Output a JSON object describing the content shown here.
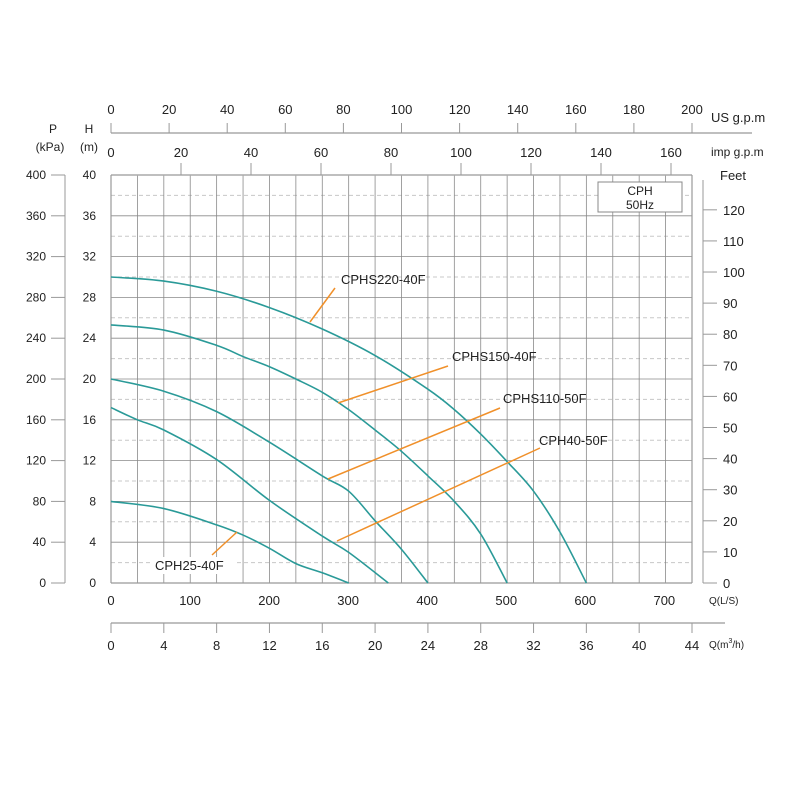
{
  "chart_data": {
    "type": "line",
    "title": "",
    "legend_box": {
      "line1": "CPH",
      "line2": "50Hz"
    },
    "x_axis": {
      "label": "Q(m³/h)",
      "label_main": "Q(m",
      "label_sup": "3",
      "label_end": "/h)",
      "range": [
        0,
        44
      ],
      "ticks": [
        0,
        4,
        8,
        12,
        16,
        20,
        24,
        28,
        32,
        36,
        40,
        44
      ]
    },
    "x_axis_ls": {
      "label": "Q(L/S)",
      "range": [
        0,
        735
      ],
      "ticks": [
        0,
        100,
        200,
        300,
        400,
        500,
        600,
        700
      ]
    },
    "x_axis_us_gpm": {
      "label": "US g.p.m",
      "range": [
        0,
        200
      ],
      "ticks": [
        0,
        20,
        40,
        60,
        80,
        100,
        120,
        140,
        160,
        180,
        200
      ]
    },
    "x_axis_imp_gpm": {
      "label": "imp g.p.m",
      "range": [
        0,
        166
      ],
      "ticks": [
        0,
        20,
        40,
        60,
        80,
        100,
        120,
        140,
        160
      ]
    },
    "y_axis": {
      "label_top": "H",
      "label_unit": "(m)",
      "range": [
        0,
        40
      ],
      "ticks": [
        0,
        4,
        8,
        12,
        16,
        20,
        24,
        28,
        32,
        36,
        40
      ]
    },
    "y_axis_kpa": {
      "label_top": "P",
      "label_unit": "(kPa)",
      "range": [
        0,
        400
      ],
      "ticks": [
        0,
        40,
        80,
        120,
        160,
        200,
        240,
        280,
        320,
        360,
        400
      ]
    },
    "y_axis_feet": {
      "label": "Feet",
      "range": [
        0,
        131.2
      ],
      "ticks": [
        0,
        10,
        20,
        30,
        40,
        50,
        60,
        70,
        80,
        90,
        100,
        110,
        120
      ]
    },
    "grid": true,
    "colors": {
      "curve": "#2a9a98",
      "leader": "#f0902a",
      "grid": "#8a8a8a",
      "grid_dashed": "#c8c8c8"
    },
    "series": [
      {
        "name": "CPHS220-40F",
        "x": [
          0,
          4,
          8,
          12,
          16,
          20,
          24,
          26,
          28,
          30,
          32,
          34,
          36
        ],
        "y": [
          30,
          29.6,
          28.6,
          27,
          24.9,
          22.3,
          19,
          17,
          14.6,
          11.9,
          9,
          5,
          0
        ]
      },
      {
        "name": "CPHS150-40F",
        "x": [
          0,
          4,
          8,
          10,
          12,
          14,
          16,
          18,
          20,
          22,
          24,
          26,
          28,
          30
        ],
        "y": [
          25.3,
          24.8,
          23.3,
          22.2,
          21.2,
          20,
          18.7,
          17,
          15,
          12.9,
          10.5,
          8,
          4.8,
          0
        ]
      },
      {
        "name": "CPHS110-50F",
        "x": [
          0,
          4,
          8,
          12,
          16,
          18,
          20,
          22,
          24
        ],
        "y": [
          20,
          18.8,
          16.8,
          13.8,
          10.5,
          9,
          6.1,
          3.3,
          0
        ]
      },
      {
        "name": "CPH40-50F",
        "x": [
          0,
          2,
          4,
          8,
          12,
          16,
          18,
          21
        ],
        "y": [
          17.2,
          16,
          15,
          12.1,
          8.1,
          4.6,
          3,
          0
        ]
      },
      {
        "name": "CPH25-40F",
        "x": [
          0,
          4,
          8,
          10,
          12,
          14,
          16,
          18
        ],
        "y": [
          8,
          7.3,
          5.7,
          4.7,
          3.4,
          1.9,
          1,
          0
        ]
      }
    ]
  }
}
